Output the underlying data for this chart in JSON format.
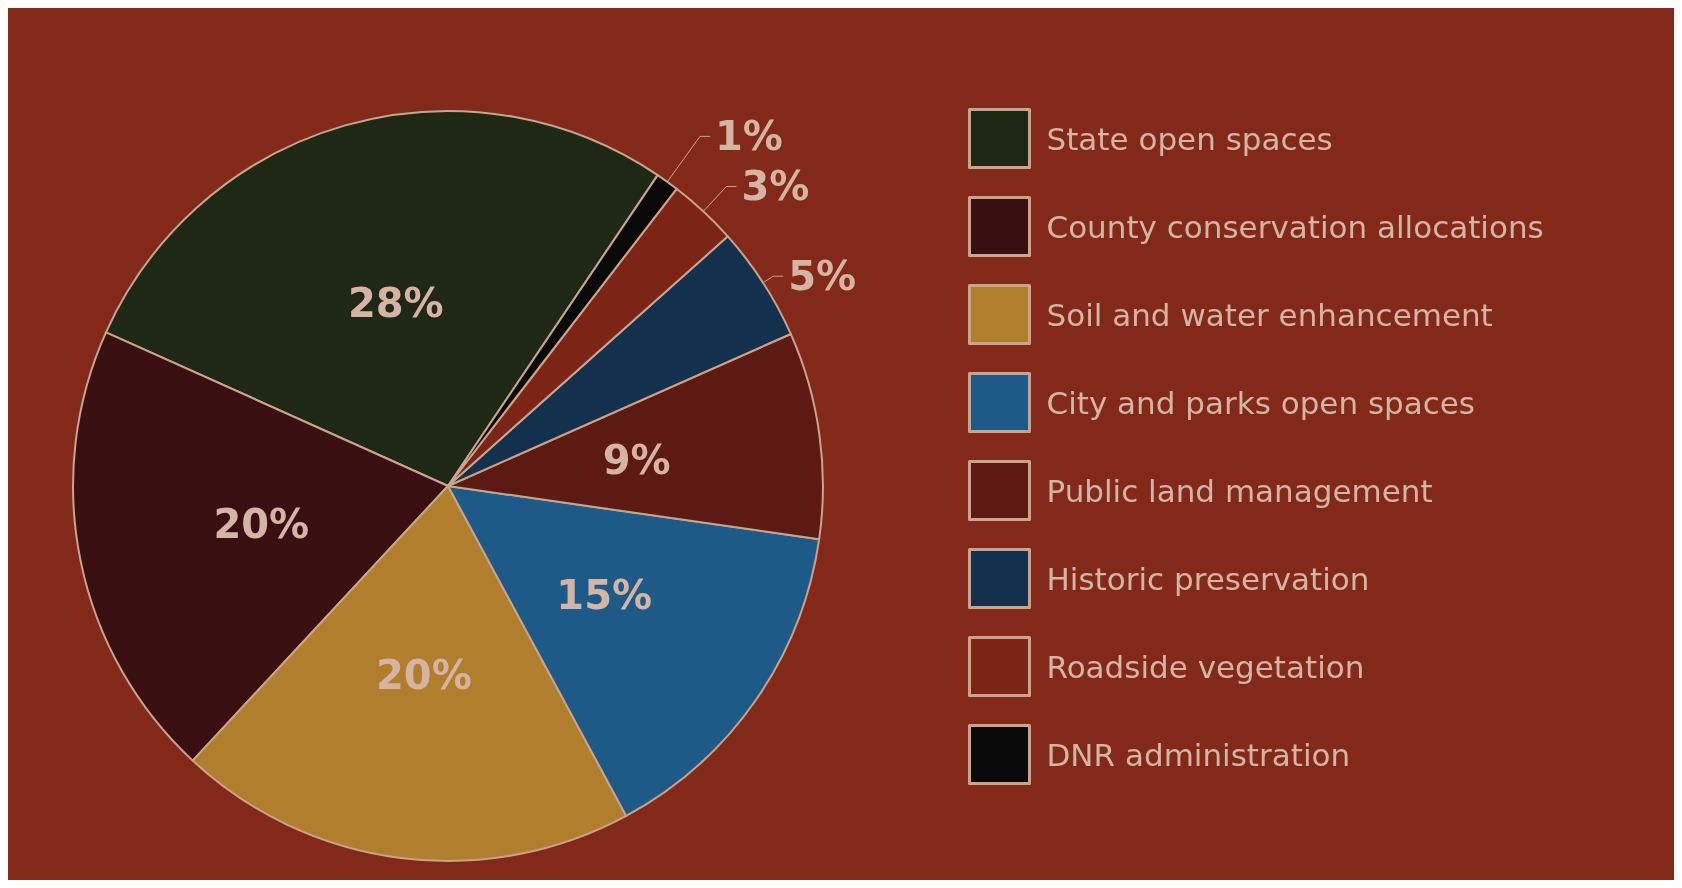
{
  "chart_data": {
    "type": "pie",
    "categories": [
      "State open spaces",
      "County conservation allocations",
      "Soil and water enhancement",
      "City and parks open spaces",
      "Public land management",
      "Historic preservation",
      "Roadside vegetation",
      "DNR administration"
    ],
    "values": [
      28,
      20,
      20,
      15,
      9,
      5,
      3,
      1
    ],
    "value_labels": [
      "28%",
      "20%",
      "20%",
      "15%",
      "9%",
      "5%",
      "3%",
      "1%"
    ],
    "colors": [
      "#1f2814",
      "#3a0f12",
      "#b07e2c",
      "#1d5a88",
      "#5c1a12",
      "#13304c",
      "#7c2517",
      "#0a0a0a"
    ],
    "legend": "right"
  }
}
